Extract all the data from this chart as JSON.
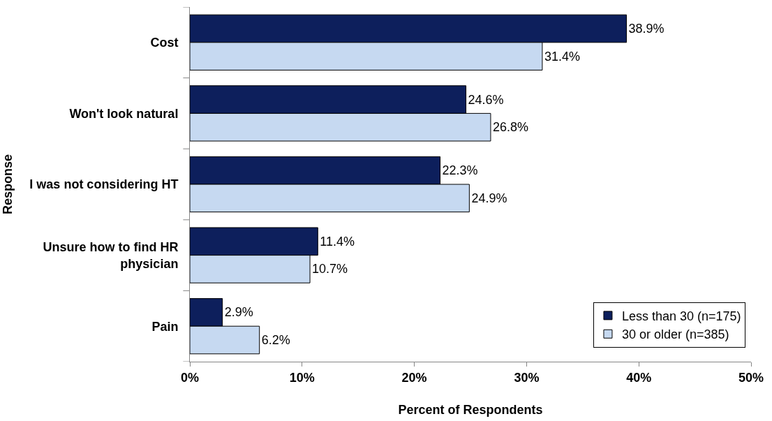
{
  "chart_data": {
    "type": "bar",
    "orientation": "horizontal",
    "xlabel": "Percent of Respondents",
    "ylabel": "Response",
    "categories": [
      "Cost",
      "Won't look natural",
      "I was not considering HT",
      "Unsure how to find HR physician",
      "Pain"
    ],
    "series": [
      {
        "name": "Less than 30 (n=175)",
        "color": "#0d1f5c",
        "values": [
          38.9,
          24.6,
          22.3,
          11.4,
          2.9
        ],
        "value_labels": [
          "38.9%",
          "24.6%",
          "22.3%",
          "11.4%",
          "2.9%"
        ]
      },
      {
        "name": "30 or older (n=385)",
        "color": "#c6d9f1",
        "values": [
          31.4,
          26.8,
          24.9,
          10.7,
          6.2
        ],
        "value_labels": [
          "31.4%",
          "26.8%",
          "24.9%",
          "10.7%",
          "6.2%"
        ]
      }
    ],
    "xlim": [
      0,
      50
    ],
    "xticks": [
      {
        "value": 0,
        "label": "0%"
      },
      {
        "value": 10,
        "label": "10%"
      },
      {
        "value": 20,
        "label": "20%"
      },
      {
        "value": 30,
        "label": "30%"
      },
      {
        "value": 40,
        "label": "40%"
      },
      {
        "value": 50,
        "label": "50%"
      }
    ],
    "grid": false,
    "legend": "bottom right"
  }
}
